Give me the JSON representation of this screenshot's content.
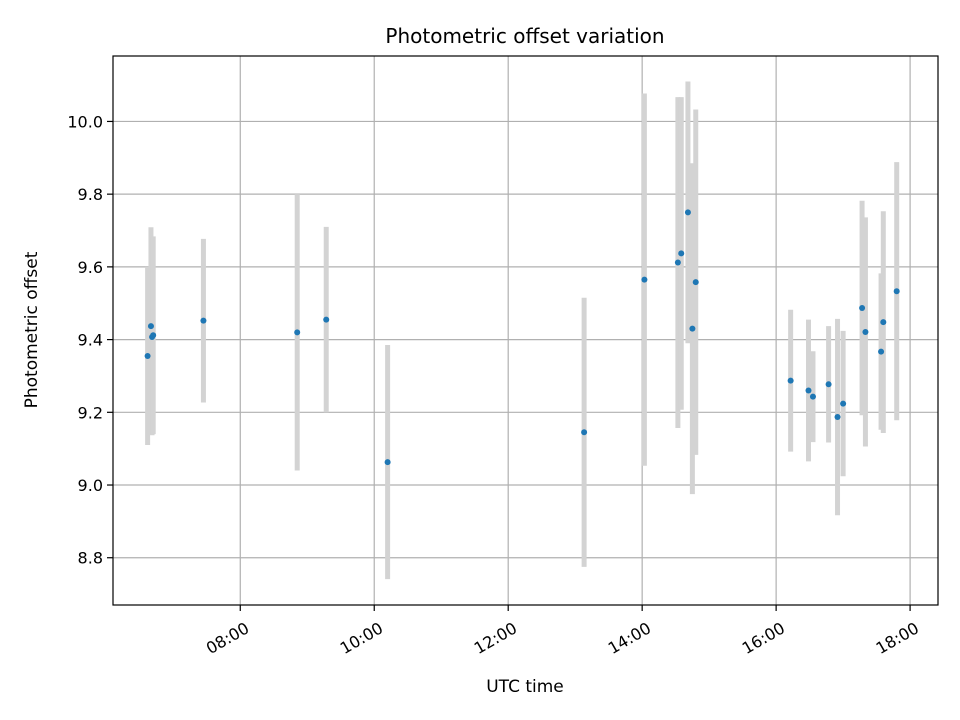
{
  "chart_data": {
    "type": "scatter",
    "title": "Photometric offset variation",
    "xlabel": "UTC time",
    "ylabel": "Photometric offset",
    "x_ticks": [
      "08:00",
      "10:00",
      "12:00",
      "14:00",
      "16:00",
      "18:00"
    ],
    "y_ticks": [
      "8.8",
      "9.0",
      "9.2",
      "9.4",
      "9.6",
      "9.8",
      "10.0"
    ],
    "ylim": [
      8.67,
      10.18
    ],
    "xlim": [
      "06:06",
      "18:25"
    ],
    "grid": true,
    "legend": "none",
    "colors": {
      "point": "#1f77b4",
      "errorbar": "#d3d3d3",
      "grid": "#b0b0b0"
    },
    "points": [
      {
        "x": "06:37",
        "y": 9.355,
        "yerr": 0.245
      },
      {
        "x": "06:40",
        "y": 9.437,
        "yerr": 0.272
      },
      {
        "x": "06:41",
        "y": 9.407,
        "yerr": 0.27
      },
      {
        "x": "06:42",
        "y": 9.412,
        "yerr": 0.272
      },
      {
        "x": "07:27",
        "y": 9.452,
        "yerr": 0.225
      },
      {
        "x": "08:51",
        "y": 9.42,
        "yerr": 0.38
      },
      {
        "x": "09:17",
        "y": 9.455,
        "yerr": 0.255
      },
      {
        "x": "10:12",
        "y": 9.063,
        "yerr": 0.322
      },
      {
        "x": "13:08",
        "y": 9.145,
        "yerr": 0.37
      },
      {
        "x": "14:02",
        "y": 9.565,
        "yerr": 0.512
      },
      {
        "x": "14:32",
        "y": 9.612,
        "yerr": 0.455
      },
      {
        "x": "14:35",
        "y": 9.637,
        "yerr": 0.43
      },
      {
        "x": "14:41",
        "y": 9.75,
        "yerr": 0.36
      },
      {
        "x": "14:45",
        "y": 9.43,
        "yerr": 0.455
      },
      {
        "x": "14:48",
        "y": 9.558,
        "yerr": 0.475
      },
      {
        "x": "16:13",
        "y": 9.287,
        "yerr": 0.195
      },
      {
        "x": "16:29",
        "y": 9.26,
        "yerr": 0.195
      },
      {
        "x": "16:33",
        "y": 9.243,
        "yerr": 0.125
      },
      {
        "x": "16:47",
        "y": 9.277,
        "yerr": 0.16
      },
      {
        "x": "16:55",
        "y": 9.187,
        "yerr": 0.27
      },
      {
        "x": "17:00",
        "y": 9.224,
        "yerr": 0.2
      },
      {
        "x": "17:17",
        "y": 9.487,
        "yerr": 0.295
      },
      {
        "x": "17:20",
        "y": 9.421,
        "yerr": 0.315
      },
      {
        "x": "17:34",
        "y": 9.367,
        "yerr": 0.215
      },
      {
        "x": "17:36",
        "y": 9.448,
        "yerr": 0.305
      },
      {
        "x": "17:48",
        "y": 9.533,
        "yerr": 0.355
      }
    ]
  }
}
